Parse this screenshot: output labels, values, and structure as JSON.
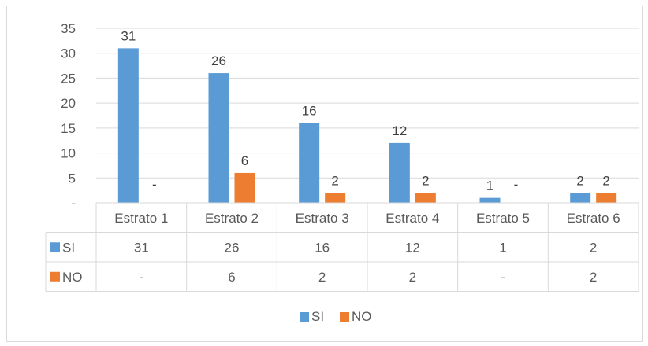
{
  "chart_data": {
    "type": "bar",
    "categories": [
      "Estrato 1",
      "Estrato 2",
      "Estrato 3",
      "Estrato 4",
      "Estrato 5",
      "Estrato 6"
    ],
    "series": [
      {
        "name": "SI",
        "values": [
          31,
          26,
          16,
          12,
          1,
          2
        ],
        "labels": [
          "31",
          "26",
          "16",
          "12",
          "1",
          "2"
        ],
        "color": "#5b9bd5"
      },
      {
        "name": "NO",
        "values": [
          0,
          6,
          2,
          2,
          0,
          2
        ],
        "labels": [
          "-",
          "6",
          "2",
          "2",
          "-",
          "2"
        ],
        "color": "#ed7d31"
      }
    ],
    "y_ticks": [
      "-",
      "5",
      "10",
      "15",
      "20",
      "25",
      "30",
      "35"
    ],
    "ylim": [
      0,
      35
    ],
    "grid": true,
    "data_table": true,
    "legend_position": "bottom"
  }
}
